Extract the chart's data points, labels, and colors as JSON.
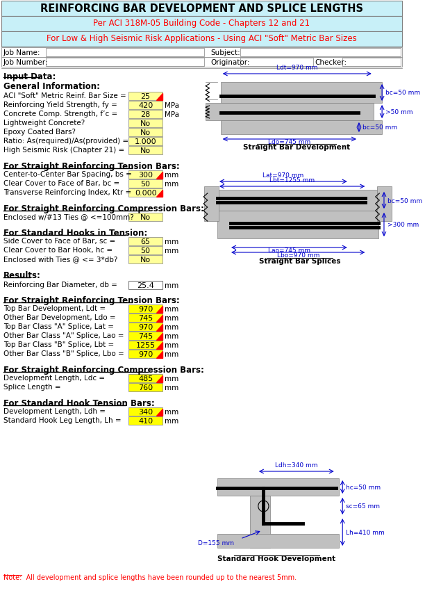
{
  "title": "REINFORCING BAR DEVELOPMENT AND SPLICE LENGTHS",
  "subtitle1": "Per ACI 318M-05 Building Code - Chapters 12 and 21",
  "subtitle2": "For Low & High Seismic Risk Applications - Using ACI \"Soft\" Metric Bar Sizes",
  "header_bg": "#c8f0f8",
  "input_label": "Input Data:",
  "general_info_label": "General Information:",
  "fields_left": [
    [
      "ACI \"Soft\" Metric Reinf. Bar Size =",
      "25",
      "#ffff99",
      true
    ],
    [
      "Reinforcing Yield Strength, fy =",
      "420",
      "#ffff99",
      false
    ],
    [
      "Concrete Comp. Strength, f’c =",
      "28",
      "#ffff99",
      false
    ],
    [
      "Lightweight Concrete?",
      "No",
      "#ffff99",
      false
    ],
    [
      "Epoxy Coated Bars?",
      "No",
      "#ffff99",
      false
    ],
    [
      "Ratio: As(required)/As(provided) =",
      "1.000",
      "#ffff99",
      false
    ],
    [
      "High Seismic Risk (Chapter 21) =",
      "No",
      "#ffff99",
      false
    ]
  ],
  "units_left": [
    "",
    "MPa",
    "MPa",
    "",
    "",
    "",
    ""
  ],
  "tension_label": "For Straight Reinforcing Tension Bars:",
  "tension_fields": [
    [
      "Center-to-Center Bar Spacing, bs =",
      "300",
      "#ffff99",
      true
    ],
    [
      "Clear Cover to Face of Bar, bc =",
      "50",
      "#ffff99",
      false
    ],
    [
      "Transverse Reinforcing Index, Ktr =",
      "0.000",
      "#ffff99",
      true
    ]
  ],
  "tension_units": [
    "mm",
    "mm",
    ""
  ],
  "compression_label": "For Straight Reinforcing Compression Bars:",
  "compression_fields": [
    [
      "Enclosed w/#13 Ties @ <=100mm?",
      "No",
      "#ffff99",
      false
    ]
  ],
  "hooks_label": "For Standard Hooks in Tension:",
  "hooks_fields": [
    [
      "Side Cover to Face of Bar, sc =",
      "65",
      "#ffff99",
      false
    ],
    [
      "Clear Cover to Bar Hook, hc =",
      "50",
      "#ffff99",
      false
    ],
    [
      "Enclosed with Ties @ <= 3*db?",
      "No",
      "#ffff99",
      false
    ]
  ],
  "hooks_units": [
    "mm",
    "mm",
    ""
  ],
  "results_label": "Results:",
  "db_field": [
    "Reinforcing Bar Diameter, db =",
    "25.4",
    "#ffffff",
    false
  ],
  "straight_tension_results_label": "For Straight Reinforcing Tension Bars:",
  "straight_tension_results": [
    [
      "Top Bar Development, Ldt =",
      "970",
      "#ffff00",
      true
    ],
    [
      "Other Bar Development, Ldo =",
      "745",
      "#ffff00",
      true
    ],
    [
      "Top Bar Class \"A\" Splice, Lat =",
      "970",
      "#ffff00",
      true
    ],
    [
      "Other Bar Class \"A\" Splice, Lao =",
      "745",
      "#ffff00",
      true
    ],
    [
      "Top Bar Class \"B\" Splice, Lbt =",
      "1255",
      "#ffff00",
      true
    ],
    [
      "Other Bar Class \"B\" Splice, Lbo =",
      "970",
      "#ffff00",
      true
    ]
  ],
  "straight_tension_units": [
    "mm",
    "mm",
    "mm",
    "mm",
    "mm",
    "mm"
  ],
  "comp_results_label": "For Straight Reinforcing Compression Bars:",
  "comp_results": [
    [
      "Development Length, Ldc =",
      "485",
      "#ffff00",
      true
    ],
    [
      "Splice Length =",
      "760",
      "#ffff00",
      false
    ]
  ],
  "comp_results_units": [
    "mm",
    "mm"
  ],
  "hook_results_label": "For Standard Hook Tension Bars:",
  "hook_results": [
    [
      "Development Length, Ldh =",
      "340",
      "#ffff00",
      true
    ],
    [
      "Standard Hook Leg Length, Lh =",
      "410",
      "#ffff00",
      false
    ]
  ],
  "hook_results_units": [
    "mm",
    "mm"
  ],
  "note": "Note:  All development and splice lengths have been rounded up to the nearest 5mm."
}
